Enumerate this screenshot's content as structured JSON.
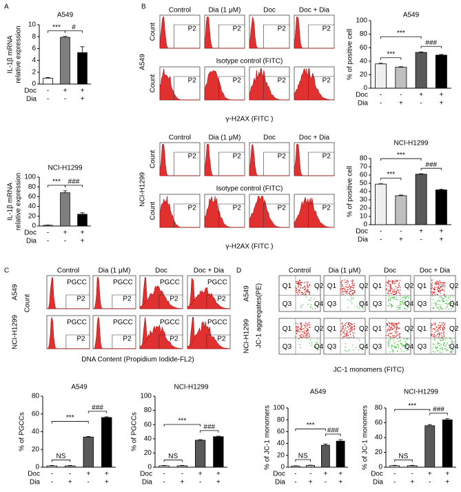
{
  "panel_labels": [
    "A",
    "B",
    "C",
    "D"
  ],
  "flow": {
    "B": {
      "conditions": [
        "Control",
        "Dia (1 μM)",
        "Doc",
        "Doc + Dia"
      ],
      "cell_lines": [
        "A549",
        "NCI-H1299"
      ],
      "y_label": "Count",
      "gate": "P2",
      "isotype": "Isotype control (FITC)",
      "x_label": "γ-H2AX (FITC )"
    },
    "C": {
      "conditions": [
        "Control",
        "Dia (1 μM)",
        "Doc",
        "Doc + Dia"
      ],
      "cell_lines": [
        "A549",
        "NCI-H1299"
      ],
      "y_label": "Count",
      "gate_text": "PGCC",
      "gate": "P2",
      "x_label": "DNA Content (Propidium Iodide-FL2)"
    },
    "D": {
      "conditions": [
        "Control",
        "Dia (1 μM)",
        "Doc",
        "Doc + Dia"
      ],
      "cell_lines": [
        "A549",
        "NCI-H1299"
      ],
      "y_label": "JC-1 aggregates(PE)",
      "quadrants": [
        "Q1",
        "Q2",
        "Q3",
        "Q4"
      ],
      "x_label": "JC-1 monomers (FITC)"
    }
  },
  "chart_data": [
    {
      "type": "bar",
      "title": "A549",
      "y_label": [
        "IL-1β mRNA",
        "relative expression"
      ],
      "values": [
        1,
        7.9,
        5.3
      ],
      "errors": [
        0.1,
        0.15,
        1.0
      ],
      "colors": [
        "#ffffff",
        "#7f7f7f",
        "#000000"
      ],
      "ylim": [
        0,
        10
      ],
      "yticks": [
        0,
        2,
        4,
        6,
        8,
        10
      ],
      "rows": [
        {
          "name": "Doc",
          "signs": [
            "-",
            "+",
            "+"
          ]
        },
        {
          "name": "Dia",
          "signs": [
            "-",
            "-",
            "+"
          ]
        }
      ],
      "annotations": [
        "***",
        "#"
      ]
    },
    {
      "type": "bar",
      "title": "NCI-H1299",
      "y_label": [
        "IL-1β mRNA",
        "relative expression"
      ],
      "values": [
        1.5,
        68,
        24
      ],
      "errors": [
        0.5,
        4,
        3
      ],
      "colors": [
        "#ffffff",
        "#7f7f7f",
        "#000000"
      ],
      "ylim": [
        0,
        100
      ],
      "yticks": [
        0,
        20,
        40,
        60,
        80,
        100
      ],
      "rows": [
        {
          "name": "Doc",
          "signs": [
            "-",
            "+",
            "+"
          ]
        },
        {
          "name": "Dia",
          "signs": [
            "-",
            "-",
            "+"
          ]
        }
      ],
      "annotations": [
        "***",
        "###"
      ]
    },
    {
      "type": "bar",
      "title": "A549",
      "y_label": [
        "% of  positive cell"
      ],
      "values": [
        36,
        31,
        53,
        49
      ],
      "errors": [
        1,
        0.8,
        0.8,
        1
      ],
      "colors": [
        "#efefef",
        "#bfbfbf",
        "#595959",
        "#000000"
      ],
      "ylim": [
        0,
        100
      ],
      "yticks": [
        0,
        20,
        40,
        60,
        80,
        100
      ],
      "rows": [
        {
          "name": "Doc",
          "signs": [
            "-",
            "-",
            "+",
            "+"
          ]
        },
        {
          "name": "Dia",
          "signs": [
            "-",
            "+",
            "-",
            "+"
          ]
        }
      ],
      "annotations": [
        "***",
        "***",
        "###"
      ]
    },
    {
      "type": "bar",
      "title": "NCI-H1299",
      "y_label": [
        "% of  positive cell"
      ],
      "values": [
        49,
        35,
        61,
        42
      ],
      "errors": [
        0.6,
        0.8,
        0.5,
        0.8
      ],
      "colors": [
        "#efefef",
        "#bfbfbf",
        "#595959",
        "#000000"
      ],
      "ylim": [
        0,
        80
      ],
      "yticks": [
        0,
        10,
        20,
        30,
        40,
        50,
        60,
        70,
        80
      ],
      "rows": [
        {
          "name": "Doc",
          "signs": [
            "-",
            "-",
            "+",
            "+"
          ]
        },
        {
          "name": "Dia",
          "signs": [
            "-",
            "+",
            "-",
            "+"
          ]
        }
      ],
      "annotations": [
        "***",
        "***",
        "###"
      ]
    },
    {
      "type": "bar",
      "title": "A549",
      "y_label": [
        "%  of  PGCCs"
      ],
      "values": [
        1.5,
        1.5,
        34,
        56
      ],
      "errors": [
        0.5,
        0.5,
        0.5,
        0.8
      ],
      "colors": [
        "#e6e6e6",
        "#bfbfbf",
        "#595959",
        "#000000"
      ],
      "ylim": [
        0,
        80
      ],
      "yticks": [
        0,
        20,
        40,
        60,
        80
      ],
      "rows": [
        {
          "name": "Doc",
          "signs": [
            "-",
            "-",
            "+",
            "+"
          ]
        },
        {
          "name": "Dia",
          "signs": [
            "-",
            "+",
            "-",
            "+"
          ]
        }
      ],
      "annotations": [
        "NS",
        "***",
        "###"
      ]
    },
    {
      "type": "bar",
      "title": "NCI-H1299",
      "y_label": [
        "%  of  PGCCs"
      ],
      "values": [
        2,
        2,
        38,
        43
      ],
      "errors": [
        0.5,
        0.5,
        0.8,
        0.8
      ],
      "colors": [
        "#e6e6e6",
        "#bfbfbf",
        "#595959",
        "#000000"
      ],
      "ylim": [
        0,
        100
      ],
      "yticks": [
        0,
        20,
        40,
        60,
        80,
        100
      ],
      "rows": [
        {
          "name": "Doc",
          "signs": [
            "-",
            "-",
            "+",
            "+"
          ]
        },
        {
          "name": "Dia",
          "signs": [
            "-",
            "+",
            "-",
            "+"
          ]
        }
      ],
      "annotations": [
        "NS",
        "***",
        "###"
      ]
    },
    {
      "type": "bar",
      "title": "A549",
      "y_label": [
        "% of JC-1 monomers"
      ],
      "values": [
        2,
        3,
        37,
        44
      ],
      "errors": [
        0.5,
        0.5,
        2,
        2.5
      ],
      "colors": [
        "#e6e6e6",
        "#bfbfbf",
        "#595959",
        "#000000"
      ],
      "ylim": [
        0,
        100
      ],
      "yticks": [
        0,
        20,
        40,
        60,
        80,
        100
      ],
      "rows": [
        {
          "name": "Doc",
          "signs": [
            "-",
            "-",
            "+",
            "+"
          ]
        },
        {
          "name": "Dia",
          "signs": [
            "-",
            "+",
            "-",
            "+"
          ]
        }
      ],
      "annotations": [
        "NS",
        "***",
        "###"
      ]
    },
    {
      "type": "bar",
      "title": "NCI-H1299",
      "y_label": [
        "% of JC-1 monomers"
      ],
      "values": [
        2,
        2,
        56,
        64
      ],
      "errors": [
        0.5,
        0.5,
        1.5,
        1.5
      ],
      "colors": [
        "#e6e6e6",
        "#bfbfbf",
        "#595959",
        "#000000"
      ],
      "ylim": [
        0,
        80
      ],
      "yticks": [
        0,
        20,
        40,
        60,
        80
      ],
      "rows": [
        {
          "name": "Doc",
          "signs": [
            "-",
            "-",
            "+",
            "+"
          ]
        },
        {
          "name": "Dia",
          "signs": [
            "-",
            "+",
            "-",
            "+"
          ]
        }
      ],
      "annotations": [
        "NS",
        "***",
        "###"
      ]
    }
  ]
}
